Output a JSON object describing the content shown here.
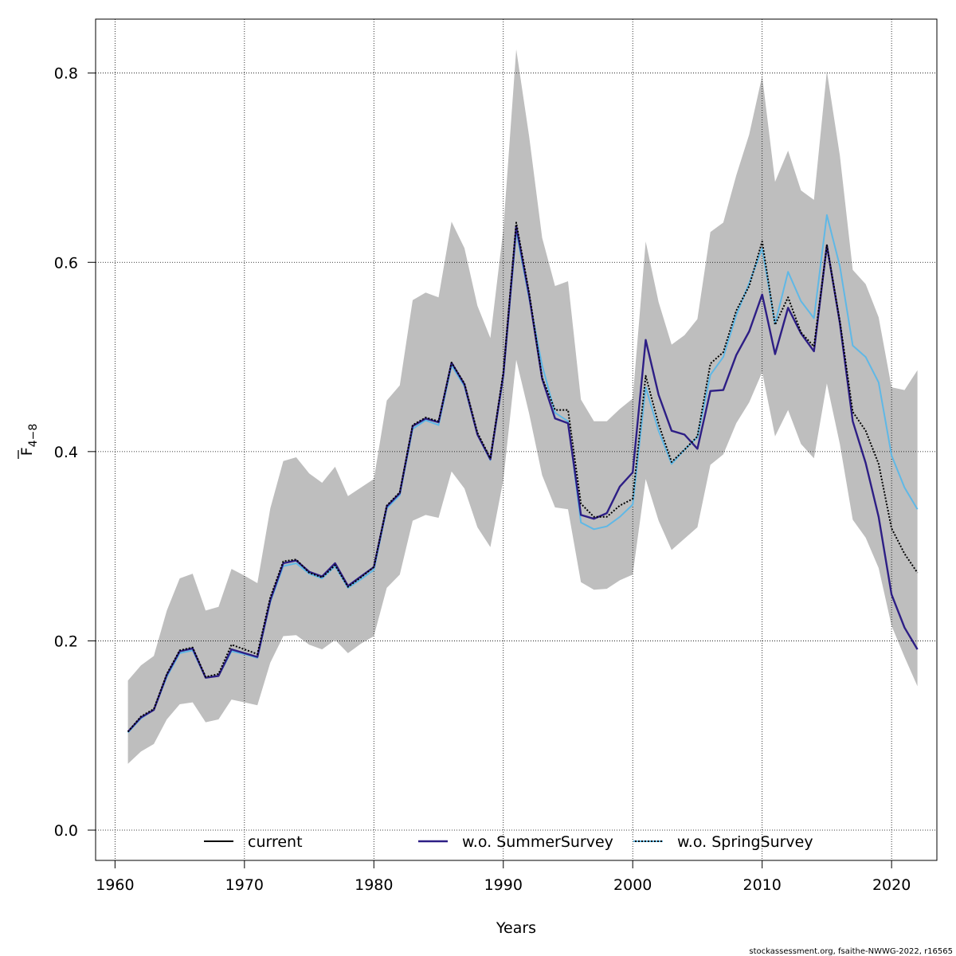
{
  "chart_data": {
    "type": "line",
    "xlabel": "Years",
    "ylabel_main": "F",
    "ylabel_sub": "4−8",
    "xlim": [
      1958.5,
      2023.5
    ],
    "ylim": [
      -0.032,
      0.857
    ],
    "xticks": [
      1960,
      1970,
      1980,
      1990,
      2000,
      2010,
      2020
    ],
    "yticks": [
      0.0,
      0.2,
      0.4,
      0.6,
      0.8
    ],
    "ytick_labels": [
      "0.0",
      "0.2",
      "0.4",
      "0.6",
      "0.8"
    ],
    "grid": true,
    "legend_position": "bottom",
    "credit": "stockassessment.org, fsaithe-NWWG-2022, r16565",
    "x": [
      1961,
      1962,
      1963,
      1964,
      1965,
      1966,
      1967,
      1968,
      1969,
      1970,
      1971,
      1972,
      1973,
      1974,
      1975,
      1976,
      1977,
      1978,
      1979,
      1980,
      1981,
      1982,
      1983,
      1984,
      1985,
      1986,
      1987,
      1988,
      1989,
      1990,
      1991,
      1992,
      1993,
      1994,
      1995,
      1996,
      1997,
      1998,
      1999,
      2000,
      2001,
      2002,
      2003,
      2004,
      2005,
      2006,
      2007,
      2008,
      2009,
      2010,
      2011,
      2012,
      2013,
      2014,
      2015,
      2016,
      2017,
      2018,
      2019,
      2020,
      2021,
      2022
    ],
    "band": {
      "color": "#bebebe",
      "upper": [
        0.158,
        0.174,
        0.184,
        0.232,
        0.266,
        0.271,
        0.232,
        0.236,
        0.276,
        0.269,
        0.261,
        0.34,
        0.39,
        0.394,
        0.377,
        0.367,
        0.384,
        0.353,
        0.362,
        0.371,
        0.454,
        0.47,
        0.56,
        0.568,
        0.563,
        0.643,
        0.615,
        0.554,
        0.52,
        0.635,
        0.825,
        0.733,
        0.626,
        0.575,
        0.58,
        0.455,
        0.432,
        0.432,
        0.445,
        0.456,
        0.622,
        0.558,
        0.513,
        0.523,
        0.54,
        0.632,
        0.642,
        0.692,
        0.735,
        0.797,
        0.685,
        0.718,
        0.676,
        0.666,
        0.802,
        0.713,
        0.592,
        0.577,
        0.542,
        0.468,
        0.465,
        0.486
      ],
      "lower": [
        0.07,
        0.083,
        0.091,
        0.117,
        0.133,
        0.135,
        0.114,
        0.117,
        0.138,
        0.135,
        0.132,
        0.177,
        0.205,
        0.206,
        0.196,
        0.191,
        0.201,
        0.187,
        0.197,
        0.205,
        0.256,
        0.27,
        0.327,
        0.333,
        0.33,
        0.379,
        0.361,
        0.32,
        0.299,
        0.37,
        0.497,
        0.44,
        0.375,
        0.341,
        0.339,
        0.262,
        0.254,
        0.255,
        0.264,
        0.27,
        0.371,
        0.327,
        0.296,
        0.308,
        0.32,
        0.386,
        0.397,
        0.43,
        0.452,
        0.484,
        0.416,
        0.444,
        0.408,
        0.393,
        0.472,
        0.408,
        0.328,
        0.309,
        0.277,
        0.216,
        0.183,
        0.152
      ]
    },
    "series": [
      {
        "name": "current",
        "color": "#000000",
        "dash": "solid",
        "values": [
          0.104,
          0.12,
          0.128,
          0.165,
          0.19,
          0.193,
          0.162,
          0.165,
          0.196,
          0.191,
          0.186,
          0.246,
          0.284,
          0.286,
          0.272,
          0.267,
          0.28,
          0.257,
          0.267,
          0.278,
          0.343,
          0.357,
          0.428,
          0.436,
          0.432,
          0.494,
          0.472,
          0.42,
          0.393,
          0.484,
          0.642,
          0.568,
          0.478,
          0.444,
          0.444,
          0.345,
          0.331,
          0.331,
          0.343,
          0.35,
          0.48,
          0.429,
          0.389,
          0.402,
          0.416,
          0.493,
          0.505,
          0.549,
          0.575,
          0.622,
          0.534,
          0.563,
          0.526,
          0.511,
          0.618,
          0.538,
          0.442,
          0.422,
          0.387,
          0.319,
          0.292,
          0.272
        ]
      },
      {
        "name": "w.o. SummerSurvey",
        "color": "#2d1e85",
        "dash": "solid",
        "values": [
          0.104,
          0.119,
          0.127,
          0.164,
          0.189,
          0.192,
          0.161,
          0.163,
          0.191,
          0.187,
          0.183,
          0.243,
          0.282,
          0.285,
          0.273,
          0.268,
          0.282,
          0.258,
          0.268,
          0.278,
          0.342,
          0.356,
          0.427,
          0.435,
          0.431,
          0.494,
          0.471,
          0.418,
          0.392,
          0.481,
          0.638,
          0.565,
          0.477,
          0.435,
          0.43,
          0.333,
          0.329,
          0.335,
          0.363,
          0.378,
          0.518,
          0.46,
          0.422,
          0.418,
          0.403,
          0.464,
          0.465,
          0.502,
          0.527,
          0.566,
          0.503,
          0.552,
          0.525,
          0.506,
          0.618,
          0.536,
          0.432,
          0.388,
          0.331,
          0.249,
          0.214,
          0.191
        ]
      },
      {
        "name": "w.o. SpringSurvey",
        "color": "#5fb8e6",
        "dash": "dotted",
        "values": [
          0.103,
          0.118,
          0.127,
          0.162,
          0.187,
          0.19,
          0.161,
          0.163,
          0.189,
          0.186,
          0.182,
          0.241,
          0.279,
          0.282,
          0.271,
          0.266,
          0.279,
          0.256,
          0.265,
          0.275,
          0.34,
          0.354,
          0.424,
          0.433,
          0.428,
          0.491,
          0.469,
          0.418,
          0.391,
          0.479,
          0.633,
          0.562,
          0.491,
          0.441,
          0.432,
          0.325,
          0.318,
          0.321,
          0.331,
          0.344,
          0.468,
          0.422,
          0.387,
          0.402,
          0.415,
          0.481,
          0.5,
          0.544,
          0.578,
          0.615,
          0.535,
          0.59,
          0.559,
          0.541,
          0.65,
          0.596,
          0.512,
          0.5,
          0.473,
          0.396,
          0.362,
          0.339
        ]
      }
    ]
  }
}
